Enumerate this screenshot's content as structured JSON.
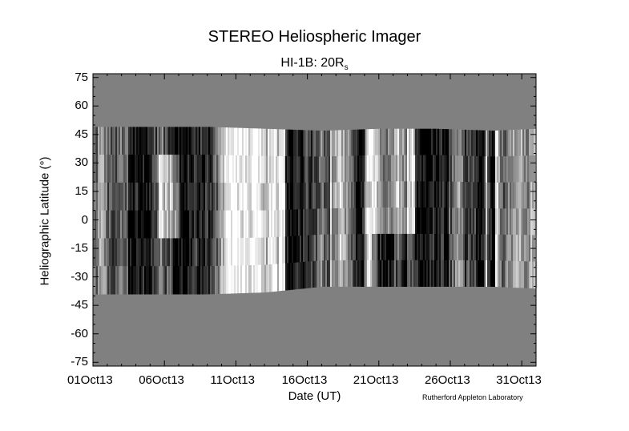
{
  "title": "STEREO Heliospheric Imager",
  "subtitle": {
    "main": "HI-1B: 20R",
    "subscript": "s"
  },
  "credit": "Rutherford Appleton Laboratory",
  "colors": {
    "no_data": "#808080",
    "axis": "#000000",
    "background": "#ffffff"
  },
  "chart_data": {
    "type": "heatmap",
    "title": "STEREO Heliospheric Imager",
    "subtitle": "HI-1B: 20Rs",
    "xlabel": "Date (UT)",
    "ylabel": "Heliographic Latitude (°)",
    "xlim": [
      "01Oct13",
      "01Nov13"
    ],
    "ylim": [
      -77,
      77
    ],
    "x_ticks": [
      "01Oct13",
      "06Oct13",
      "11Oct13",
      "16Oct13",
      "21Oct13",
      "26Oct13",
      "31Oct13"
    ],
    "y_ticks": [
      75,
      60,
      45,
      30,
      15,
      0,
      -15,
      -30,
      -45,
      -60,
      -75
    ],
    "colormap": "grayscale",
    "coverage": {
      "description": "observed latitude band per day; outside is no-data (gray)",
      "day_offset": [
        0,
        4,
        8,
        12,
        16,
        20,
        24,
        28,
        31
      ],
      "upper_lat": [
        49,
        49,
        49,
        48,
        47,
        48,
        48,
        47,
        48
      ],
      "lower_lat": [
        -39,
        -39,
        -39,
        -38,
        -35,
        -35,
        -35,
        -35,
        -36
      ]
    }
  }
}
